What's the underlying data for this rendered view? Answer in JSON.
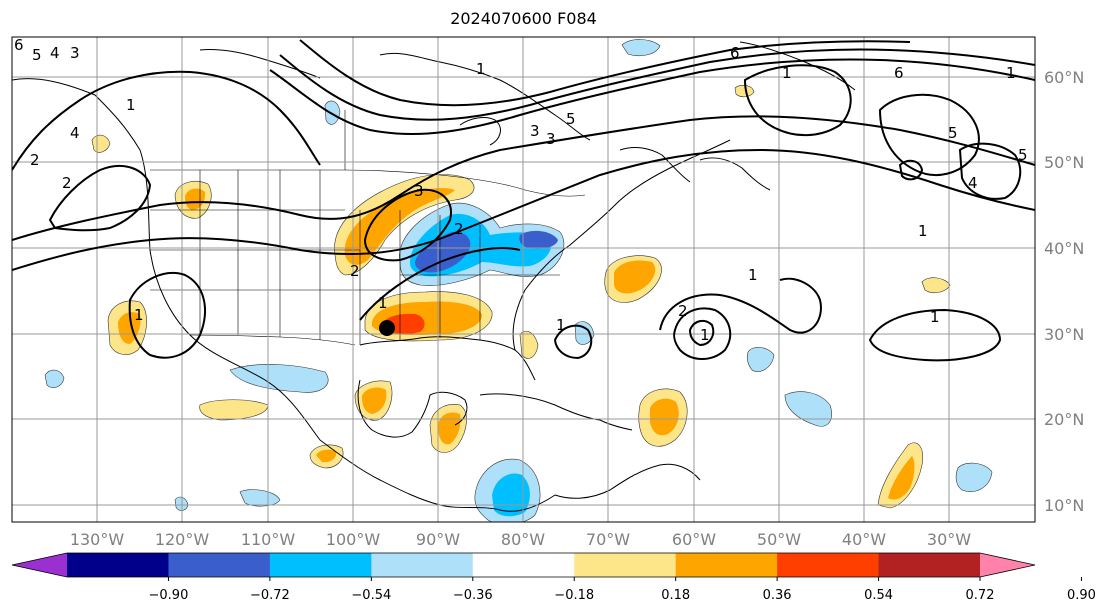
{
  "title": "2024070600 F084",
  "map": {
    "lat_labels": [
      "60°N",
      "50°N",
      "40°N",
      "30°N",
      "20°N",
      "10°N"
    ],
    "lon_labels": [
      "130°W",
      "120°W",
      "110°W",
      "100°W",
      "90°W",
      "80°W",
      "70°W",
      "60°W",
      "50°W",
      "40°W",
      "30°W"
    ],
    "contour_labels": [
      "6",
      "5",
      "4",
      "3",
      "1",
      "2",
      "2",
      "4",
      "3",
      "5",
      "3",
      "1",
      "6",
      "6",
      "5",
      "4",
      "5",
      "1",
      "2",
      "3",
      "2",
      "1",
      "1",
      "1",
      "1",
      "1",
      "1",
      "1",
      "2",
      "1"
    ]
  },
  "colorbar": {
    "tick_labels": [
      "−0.90",
      "−0.72",
      "−0.54",
      "−0.36",
      "−0.18",
      "0.18",
      "0.36",
      "0.54",
      "0.72",
      "0.90"
    ],
    "colors": [
      "#9b30d0",
      "#00008b",
      "#3a5fcd",
      "#00bfff",
      "#aee0fa",
      "#ffffff",
      "#fde58a",
      "#ffa500",
      "#ff3f00",
      "#b22222",
      "#ff82ab"
    ]
  }
}
